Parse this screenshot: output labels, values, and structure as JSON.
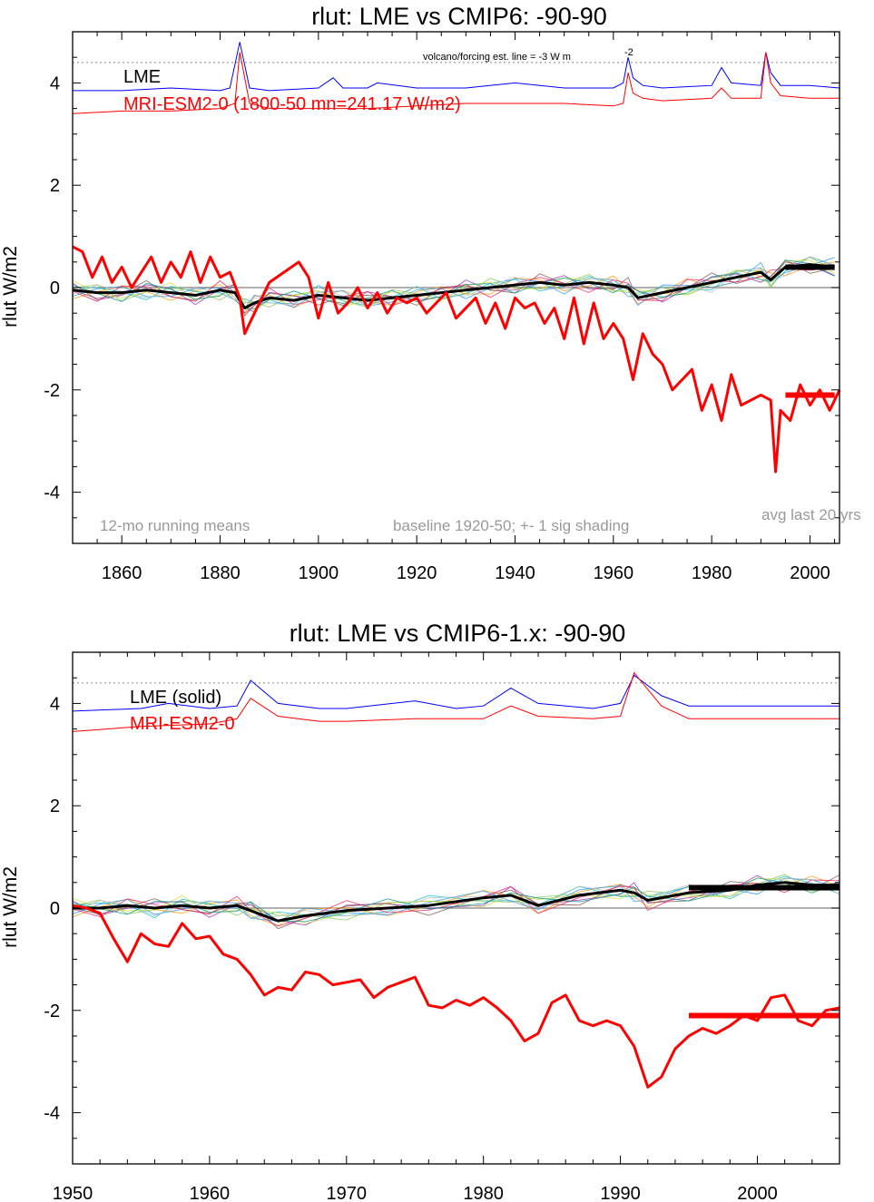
{
  "chart_data": [
    {
      "type": "line",
      "title": "rlut: LME vs CMIP6: -90-90",
      "ylabel": "rlut W/m2",
      "xlim": [
        1850,
        2006
      ],
      "ylim": [
        -5,
        5
      ],
      "xticks": [
        1860,
        1880,
        1900,
        1920,
        1940,
        1960,
        1980,
        2000
      ],
      "yticks": [
        -4,
        -2,
        0,
        2,
        4
      ],
      "ytick_labels": [
        "-4",
        "-2",
        "0",
        "2",
        "4"
      ],
      "grid": false,
      "legend": [
        {
          "text": "LME",
          "color": "#000000"
        },
        {
          "text": "MRI-ESM2-0 (1800-50 mn=241.17 W/m2)",
          "color": "#ff0000"
        }
      ],
      "annotations": {
        "volcano": "volcano/forcing est.      line = -3 W m",
        "volcano_sup": "-2",
        "left": "12-mo running means",
        "mid": "baseline 1920-50; +- 1 sig shading",
        "right": "avg last 20 yrs"
      },
      "forcing_line_y": 4.4,
      "series": [
        {
          "name": "LME",
          "color": "#000000",
          "x": [
            1850,
            1855,
            1860,
            1865,
            1870,
            1875,
            1880,
            1883,
            1885,
            1887,
            1890,
            1895,
            1900,
            1905,
            1910,
            1915,
            1920,
            1925,
            1930,
            1935,
            1940,
            1945,
            1950,
            1955,
            1960,
            1963,
            1965,
            1970,
            1975,
            1980,
            1985,
            1990,
            1992,
            1995,
            2000,
            2005
          ],
          "y": [
            -0.05,
            -0.1,
            -0.1,
            -0.05,
            -0.1,
            -0.15,
            -0.05,
            -0.1,
            -0.4,
            -0.3,
            -0.2,
            -0.25,
            -0.15,
            -0.2,
            -0.25,
            -0.2,
            -0.15,
            -0.1,
            -0.05,
            0.0,
            0.05,
            0.1,
            0.05,
            0.1,
            0.05,
            0.0,
            -0.2,
            -0.1,
            0.0,
            0.1,
            0.2,
            0.3,
            0.15,
            0.4,
            0.45,
            0.4
          ]
        },
        {
          "name": "MRI-ESM2-0",
          "color": "#ff0000",
          "x": [
            1850,
            1852,
            1854,
            1856,
            1858,
            1860,
            1862,
            1864,
            1866,
            1868,
            1870,
            1872,
            1874,
            1876,
            1878,
            1880,
            1882,
            1884,
            1885,
            1887,
            1890,
            1893,
            1896,
            1898,
            1900,
            1902,
            1904,
            1906,
            1908,
            1910,
            1912,
            1914,
            1916,
            1918,
            1920,
            1922,
            1924,
            1926,
            1928,
            1930,
            1932,
            1934,
            1936,
            1938,
            1940,
            1942,
            1944,
            1946,
            1948,
            1950,
            1952,
            1954,
            1956,
            1958,
            1960,
            1962,
            1964,
            1966,
            1968,
            1970,
            1972,
            1974,
            1976,
            1978,
            1980,
            1982,
            1984,
            1986,
            1988,
            1990,
            1992,
            1993,
            1994,
            1996,
            1998,
            2000,
            2002,
            2004,
            2006
          ],
          "y": [
            0.8,
            0.7,
            0.2,
            0.6,
            0.1,
            0.4,
            0.0,
            0.3,
            0.6,
            0.1,
            0.5,
            0.2,
            0.7,
            0.1,
            0.6,
            0.2,
            0.3,
            -0.2,
            -0.9,
            -0.5,
            0.1,
            0.3,
            0.5,
            0.2,
            -0.6,
            0.1,
            -0.5,
            -0.3,
            0.0,
            -0.4,
            -0.1,
            -0.5,
            -0.2,
            -0.3,
            -0.2,
            -0.5,
            -0.3,
            -0.1,
            -0.6,
            -0.4,
            -0.2,
            -0.7,
            -0.3,
            -0.8,
            -0.2,
            -0.4,
            -0.3,
            -0.7,
            -0.4,
            -1.0,
            -0.2,
            -1.1,
            -0.3,
            -1.0,
            -0.7,
            -1.0,
            -1.8,
            -0.9,
            -1.3,
            -1.5,
            -2.0,
            -1.8,
            -1.6,
            -2.4,
            -1.9,
            -2.6,
            -1.7,
            -2.3,
            -2.2,
            -2.1,
            -2.2,
            -3.6,
            -2.4,
            -2.6,
            -1.9,
            -2.3,
            -2.0,
            -2.4,
            -2.0
          ]
        }
      ],
      "summary_bars": [
        {
          "name": "LME last 20 yrs",
          "color": "#000000",
          "x": [
            1995,
            2005
          ],
          "y": 0.4
        },
        {
          "name": "MRI-ESM2-0 last 20 yrs",
          "color": "#ff0000",
          "x": [
            1995,
            2005
          ],
          "y": -2.1
        }
      ],
      "inset_series": [
        {
          "color": "#0000ff",
          "x": [
            1850,
            1860,
            1870,
            1880,
            1882,
            1884,
            1886,
            1890,
            1900,
            1903,
            1905,
            1910,
            1912,
            1920,
            1930,
            1940,
            1950,
            1960,
            1962,
            1963,
            1964,
            1966,
            1970,
            1980,
            1982,
            1984,
            1990,
            1991,
            1992,
            1994,
            2000,
            2006
          ],
          "y": [
            3.85,
            3.85,
            3.9,
            3.85,
            3.9,
            4.8,
            3.9,
            3.85,
            3.9,
            4.1,
            3.9,
            3.9,
            4.0,
            3.9,
            3.9,
            4.0,
            3.9,
            3.9,
            4.0,
            4.5,
            4.1,
            3.95,
            3.9,
            3.95,
            4.3,
            4.0,
            3.95,
            4.6,
            4.2,
            3.95,
            3.95,
            3.9
          ]
        },
        {
          "color": "#ff0000",
          "x": [
            1850,
            1860,
            1870,
            1880,
            1883,
            1884,
            1886,
            1890,
            1900,
            1910,
            1920,
            1930,
            1940,
            1950,
            1960,
            1962,
            1963,
            1964,
            1966,
            1970,
            1980,
            1982,
            1984,
            1990,
            1991,
            1992,
            1994,
            2000,
            2006
          ],
          "y": [
            3.4,
            3.45,
            3.45,
            3.5,
            3.6,
            4.6,
            3.6,
            3.5,
            3.5,
            3.5,
            3.55,
            3.6,
            3.6,
            3.6,
            3.55,
            3.6,
            4.2,
            3.8,
            3.7,
            3.65,
            3.7,
            3.9,
            3.7,
            3.7,
            4.6,
            4.0,
            3.75,
            3.7,
            3.7
          ]
        }
      ]
    },
    {
      "type": "line",
      "title": "rlut: LME vs CMIP6-1.x: -90-90",
      "ylabel": "rlut W/m2",
      "xlim": [
        1950,
        2006
      ],
      "ylim": [
        -5,
        5
      ],
      "xticks": [
        1950,
        1960,
        1970,
        1980,
        1990,
        2000
      ],
      "yticks": [
        -4,
        -2,
        0,
        2,
        4
      ],
      "ytick_labels": [
        "-4",
        "-2",
        "0",
        "2",
        "4"
      ],
      "grid": false,
      "legend": [
        {
          "text": "LME (solid)",
          "color": "#000000"
        },
        {
          "text": "MRI-ESM2-0",
          "color": "#ff0000"
        }
      ],
      "forcing_line_y": 4.4,
      "series": [
        {
          "name": "LME",
          "color": "#000000",
          "x": [
            1950,
            1952,
            1954,
            1956,
            1958,
            1960,
            1962,
            1963,
            1965,
            1967,
            1970,
            1973,
            1976,
            1980,
            1982,
            1984,
            1987,
            1990,
            1991,
            1992,
            1995,
            1998,
            2000,
            2002,
            2004,
            2006
          ],
          "y": [
            0.0,
            0.0,
            0.05,
            0.0,
            0.05,
            0.0,
            0.05,
            -0.05,
            -0.25,
            -0.15,
            -0.05,
            0.0,
            0.05,
            0.2,
            0.25,
            0.05,
            0.25,
            0.35,
            0.3,
            0.15,
            0.3,
            0.35,
            0.45,
            0.5,
            0.45,
            0.45
          ]
        },
        {
          "name": "MRI-ESM2-0",
          "color": "#ff0000",
          "x": [
            1950,
            1951,
            1952,
            1953,
            1954,
            1955,
            1956,
            1957,
            1958,
            1959,
            1960,
            1961,
            1962,
            1963,
            1964,
            1965,
            1966,
            1967,
            1968,
            1969,
            1970,
            1971,
            1972,
            1973,
            1974,
            1975,
            1976,
            1977,
            1978,
            1979,
            1980,
            1981,
            1982,
            1983,
            1984,
            1985,
            1986,
            1987,
            1988,
            1989,
            1990,
            1991,
            1992,
            1993,
            1994,
            1995,
            1996,
            1997,
            1998,
            1999,
            2000,
            2001,
            2002,
            2003,
            2004,
            2005,
            2006
          ],
          "y": [
            0.05,
            0.0,
            -0.1,
            -0.6,
            -1.05,
            -0.5,
            -0.7,
            -0.75,
            -0.3,
            -0.6,
            -0.55,
            -0.9,
            -1.0,
            -1.3,
            -1.7,
            -1.55,
            -1.6,
            -1.25,
            -1.3,
            -1.5,
            -1.45,
            -1.4,
            -1.75,
            -1.55,
            -1.45,
            -1.35,
            -1.9,
            -1.95,
            -1.8,
            -1.9,
            -1.75,
            -1.95,
            -2.2,
            -2.6,
            -2.45,
            -1.85,
            -1.7,
            -2.2,
            -2.3,
            -2.2,
            -2.3,
            -2.7,
            -3.5,
            -3.3,
            -2.75,
            -2.5,
            -2.35,
            -2.45,
            -2.3,
            -2.1,
            -2.2,
            -1.75,
            -1.7,
            -2.2,
            -2.3,
            -2.0,
            -1.95
          ]
        }
      ],
      "summary_bars": [
        {
          "name": "LME last 20 yrs",
          "color": "#000000",
          "x": [
            1995,
            2006
          ],
          "y": 0.4
        },
        {
          "name": "MRI-ESM2-0 last 20 yrs",
          "color": "#ff0000",
          "x": [
            1995,
            2006
          ],
          "y": -2.1
        }
      ],
      "inset_series": [
        {
          "color": "#0000ff",
          "x": [
            1950,
            1955,
            1957,
            1960,
            1962,
            1963,
            1965,
            1968,
            1970,
            1975,
            1978,
            1980,
            1982,
            1984,
            1988,
            1990,
            1991,
            1993,
            1995,
            2000,
            2006
          ],
          "y": [
            3.85,
            3.9,
            4.0,
            3.9,
            3.95,
            4.45,
            4.0,
            3.9,
            3.9,
            4.05,
            3.9,
            3.95,
            4.3,
            4.0,
            3.9,
            4.0,
            4.55,
            4.15,
            3.95,
            3.95,
            3.95
          ]
        },
        {
          "color": "#ff0000",
          "x": [
            1950,
            1955,
            1960,
            1962,
            1963,
            1965,
            1968,
            1970,
            1975,
            1980,
            1982,
            1984,
            1988,
            1990,
            1991,
            1993,
            1995,
            2000,
            2006
          ],
          "y": [
            3.45,
            3.55,
            3.6,
            3.7,
            4.1,
            3.75,
            3.65,
            3.65,
            3.7,
            3.7,
            3.95,
            3.75,
            3.7,
            3.75,
            4.6,
            3.95,
            3.7,
            3.7,
            3.7
          ]
        }
      ]
    }
  ]
}
